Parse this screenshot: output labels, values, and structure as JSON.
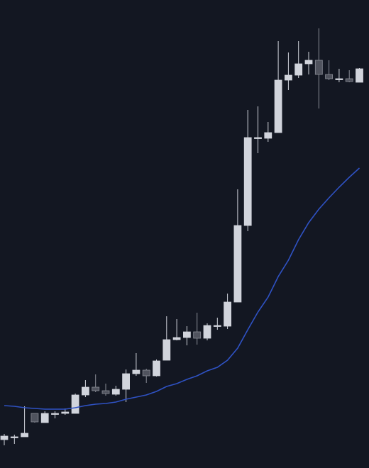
{
  "chart_data": {
    "type": "candlestick",
    "up_color": "#d1d4dc",
    "down_color": "#50535e",
    "ylim": [
      0,
      660
    ],
    "open": [
      40,
      44,
      44,
      77,
      64,
      77,
      77,
      77,
      103,
      114,
      109,
      104,
      111,
      133,
      138,
      130,
      152,
      181,
      184,
      192,
      183,
      201,
      200,
      234,
      342,
      466,
      465,
      473,
      547,
      554,
      570,
      575,
      555,
      549,
      549,
      544
    ],
    "high": [
      48,
      47,
      87,
      77,
      80,
      80,
      84,
      105,
      124,
      132,
      119,
      116,
      139,
      162,
      140,
      153,
      214,
      210,
      200,
      219,
      204,
      212,
      246,
      393,
      505,
      510,
      488,
      602,
      586,
      602,
      587,
      620,
      575,
      563,
      561,
      564
    ],
    "low": [
      32,
      34,
      44,
      64,
      64,
      70,
      75,
      77,
      100,
      107,
      102,
      102,
      93,
      130,
      120,
      129,
      152,
      180,
      173,
      174,
      180,
      195,
      196,
      234,
      334,
      444,
      460,
      473,
      533,
      550,
      555,
      507,
      547,
      544,
      544,
      544
    ],
    "close": [
      45,
      44,
      49,
      65,
      77,
      77,
      79,
      103,
      114,
      109,
      105,
      111,
      133,
      138,
      130,
      151,
      181,
      184,
      192,
      183,
      201,
      201,
      234,
      342,
      466,
      466,
      473,
      547,
      554,
      570,
      575,
      555,
      549,
      549,
      545,
      563
    ],
    "series": [
      {
        "color": "#2f52c4",
        "values": [
          88,
          87,
          85,
          84,
          83,
          83,
          83,
          85,
          88,
          90,
          91,
          93,
          97,
          100,
          103,
          108,
          115,
          119,
          125,
          130,
          137,
          142,
          152,
          169,
          195,
          220,
          241,
          270,
          293,
          322,
          346,
          365,
          381,
          396,
          410,
          423
        ]
      }
    ]
  }
}
